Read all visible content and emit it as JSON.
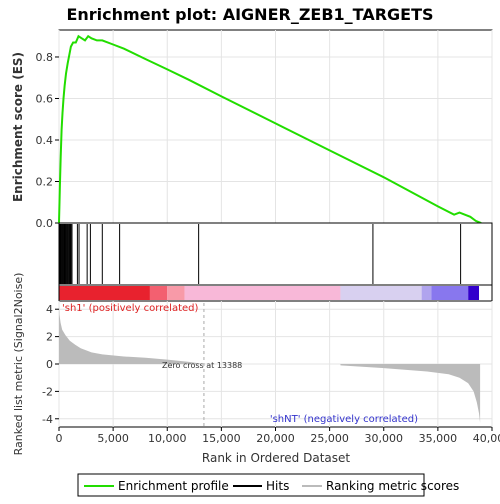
{
  "title": "Enrichment plot: AIGNER_ZEB1_TARGETS",
  "colors": {
    "es_line": "#22dd00",
    "hits": "#000000",
    "metric_fill": "#bbbbbb",
    "pos_label": "#dd2222",
    "neg_label": "#3333cc",
    "zero_cross_line": "#aaaaaa",
    "ranking_bar": [
      "#e8222e",
      "#f06070",
      "#f8b8d8",
      "#d8d0f0",
      "#8877ee",
      "#3300cc"
    ]
  },
  "legend": {
    "items": [
      {
        "label": "Enrichment profile",
        "color": "#22dd00",
        "icon": "green-line-icon"
      },
      {
        "label": "Hits",
        "color": "#000000",
        "icon": "black-line-icon"
      },
      {
        "label": "Ranking metric scores",
        "color": "#bbbbbb",
        "icon": "gray-line-icon"
      }
    ]
  },
  "annotations": {
    "pos": "'sh1' (positively correlated)",
    "neg": "'shNT' (negatively correlated)",
    "zero_cross": "Zero cross at 13388"
  },
  "chart_data": [
    {
      "type": "line",
      "name": "enrichment-profile",
      "ylabel": "Enrichment score (ES)",
      "xlim": [
        0,
        40000
      ],
      "ylim": [
        0,
        0.93
      ],
      "y_ticks": [
        0.0,
        0.2,
        0.4,
        0.6,
        0.8
      ],
      "x": [
        0,
        80,
        160,
        240,
        320,
        420,
        520,
        650,
        800,
        950,
        1100,
        1300,
        1550,
        1800,
        2100,
        2400,
        2700,
        3000,
        3500,
        4000,
        5000,
        6000,
        8000,
        10000,
        12000,
        15000,
        20000,
        25000,
        30000,
        35000,
        36500,
        37000,
        37500,
        38000,
        38500,
        39000
      ],
      "y": [
        0.0,
        0.18,
        0.32,
        0.45,
        0.53,
        0.6,
        0.66,
        0.72,
        0.77,
        0.81,
        0.85,
        0.87,
        0.87,
        0.9,
        0.89,
        0.88,
        0.9,
        0.89,
        0.88,
        0.88,
        0.86,
        0.84,
        0.79,
        0.74,
        0.69,
        0.61,
        0.48,
        0.35,
        0.22,
        0.08,
        0.04,
        0.05,
        0.04,
        0.03,
        0.01,
        0.0
      ]
    },
    {
      "type": "scatter",
      "name": "hits",
      "x": [
        50,
        120,
        180,
        260,
        330,
        400,
        470,
        550,
        620,
        700,
        780,
        860,
        940,
        1020,
        1100,
        1200,
        1700,
        1850,
        2600,
        2900,
        4000,
        5600,
        12900,
        29000,
        37100
      ]
    },
    {
      "type": "area",
      "name": "ranking-metric",
      "xlabel": "Rank in Ordered Dataset",
      "ylabel": "Ranked list metric (Signal2Noise)",
      "xlim": [
        0,
        40000
      ],
      "ylim": [
        -4.6,
        4.6
      ],
      "x_ticks": [
        0,
        5000,
        10000,
        15000,
        20000,
        25000,
        30000,
        35000,
        40000
      ],
      "x_tick_labels": [
        "0",
        "5,000",
        "10,000",
        "15,000",
        "20,000",
        "25,000",
        "30,000",
        "35,000",
        "40,000"
      ],
      "y_ticks": [
        -4,
        -2,
        0,
        2,
        4
      ],
      "zero_cross": 13388,
      "x": [
        0,
        50,
        150,
        300,
        600,
        1000,
        1500,
        2000,
        3000,
        4000,
        6000,
        8000,
        10000,
        12000,
        13388,
        26000,
        26001,
        30000,
        34000,
        36000,
        37000,
        37800,
        38300,
        38600,
        38800,
        38900
      ],
      "y": [
        4.3,
        3.6,
        3.0,
        2.5,
        2.1,
        1.7,
        1.4,
        1.15,
        0.85,
        0.7,
        0.55,
        0.45,
        0.32,
        0.15,
        0.0,
        0.0,
        -0.1,
        -0.3,
        -0.55,
        -0.75,
        -1.0,
        -1.4,
        -2.0,
        -2.8,
        -3.6,
        -4.3
      ]
    }
  ]
}
